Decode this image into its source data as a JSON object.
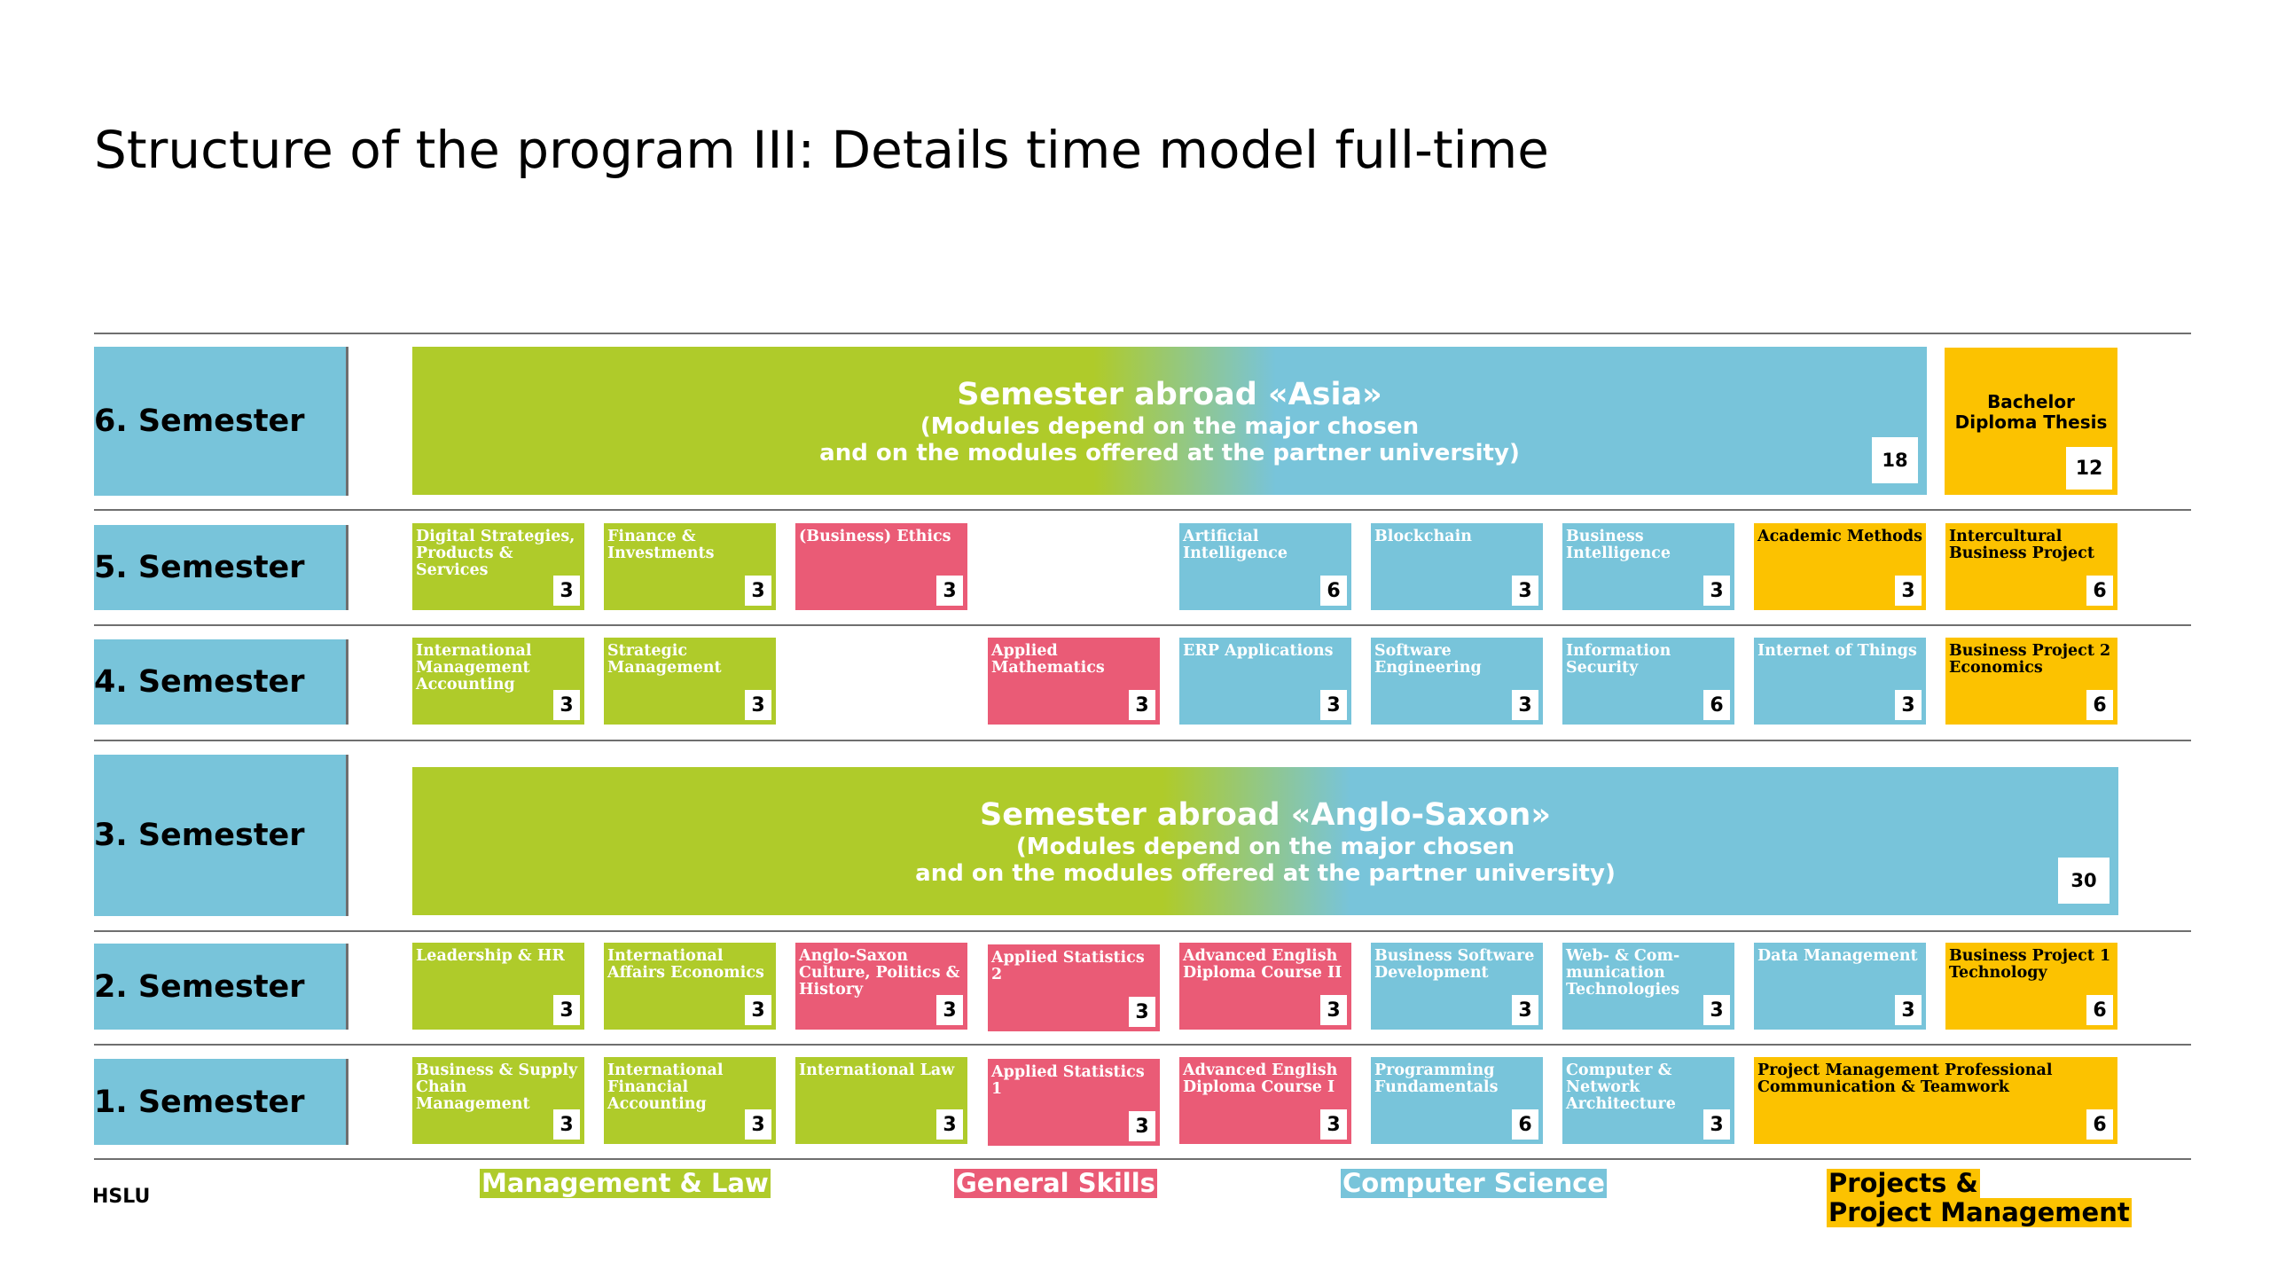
{
  "title": "Structure of the program III: Details time model full-time",
  "logo": "HSLU",
  "semesters": {
    "s6": "6. Semester",
    "s5": "5. Semester",
    "s4": "4. Semester",
    "s3": "3. Semester",
    "s2": "2. Semester",
    "s1": "1. Semester"
  },
  "abroad_asia": {
    "title": "Semester abroad «Asia»",
    "line1": "(Modules depend on the major chosen",
    "line2": "and on the modules offered at the partner university)",
    "credits": "18"
  },
  "thesis": {
    "label": "Bachelor Diploma Thesis",
    "credits": "12"
  },
  "abroad_anglo": {
    "title": "Semester abroad «Anglo-Saxon»",
    "line1": "(Modules depend on the major chosen",
    "line2": "and on the modules offered at the partner university)",
    "credits": "30"
  },
  "modules": {
    "s5": [
      {
        "label": "Digital Strategies, Products & Services",
        "credits": "3"
      },
      {
        "label": "Finance & Investments",
        "credits": "3"
      },
      {
        "label": "(Business) Ethics",
        "credits": "3"
      },
      {
        "label": "Artificial Intelligence",
        "credits": "6"
      },
      {
        "label": "Blockchain",
        "credits": "3"
      },
      {
        "label": "Business Intelligence",
        "credits": "3"
      },
      {
        "label": "Academic Methods",
        "credits": "3"
      },
      {
        "label": "Intercultural Business Project",
        "credits": "6"
      }
    ],
    "s4": [
      {
        "label": "International Management Accounting",
        "credits": "3"
      },
      {
        "label": "Strategic Management",
        "credits": "3"
      },
      {
        "label": "Applied Mathematics",
        "credits": "3"
      },
      {
        "label": "ERP Applications",
        "credits": "3"
      },
      {
        "label": "Software Engineering",
        "credits": "3"
      },
      {
        "label": "Information Security",
        "credits": "6"
      },
      {
        "label": "Internet of Things",
        "credits": "3"
      },
      {
        "label": "Business Project 2 Economics",
        "credits": "6"
      }
    ],
    "s2": [
      {
        "label": "Leadership & HR",
        "credits": "3"
      },
      {
        "label": "International Affairs Economics",
        "credits": "3"
      },
      {
        "label": "Anglo-Saxon Culture, Politics & History",
        "credits": "3"
      },
      {
        "label": "Applied Statistics 2",
        "credits": "3"
      },
      {
        "label": "Advanced English Diploma Course II",
        "credits": "3"
      },
      {
        "label": "Business Software Development",
        "credits": "3"
      },
      {
        "label": "Web- & Com-munication Technologies",
        "credits": "3"
      },
      {
        "label": "Data Management",
        "credits": "3"
      },
      {
        "label": "Business Project 1 Technology",
        "credits": "6"
      }
    ],
    "s1": [
      {
        "label": "Business & Supply Chain Management",
        "credits": "3"
      },
      {
        "label": "International Financial Accounting",
        "credits": "3"
      },
      {
        "label": "International Law",
        "credits": "3"
      },
      {
        "label": "Applied Statistics 1",
        "credits": "3"
      },
      {
        "label": "Advanced English Diploma Course I",
        "credits": "3"
      },
      {
        "label": "Programming Fundamentals",
        "credits": "6"
      },
      {
        "label": "Computer & Network Architecture",
        "credits": "3"
      },
      {
        "label": "Project Management Professional Communication & Teamwork",
        "credits": "6"
      }
    ]
  },
  "legend": {
    "mgmt": "Management & Law",
    "skills": "General Skills",
    "cs": "Computer Science",
    "proj1": "Projects &",
    "proj2": "Project Management"
  }
}
